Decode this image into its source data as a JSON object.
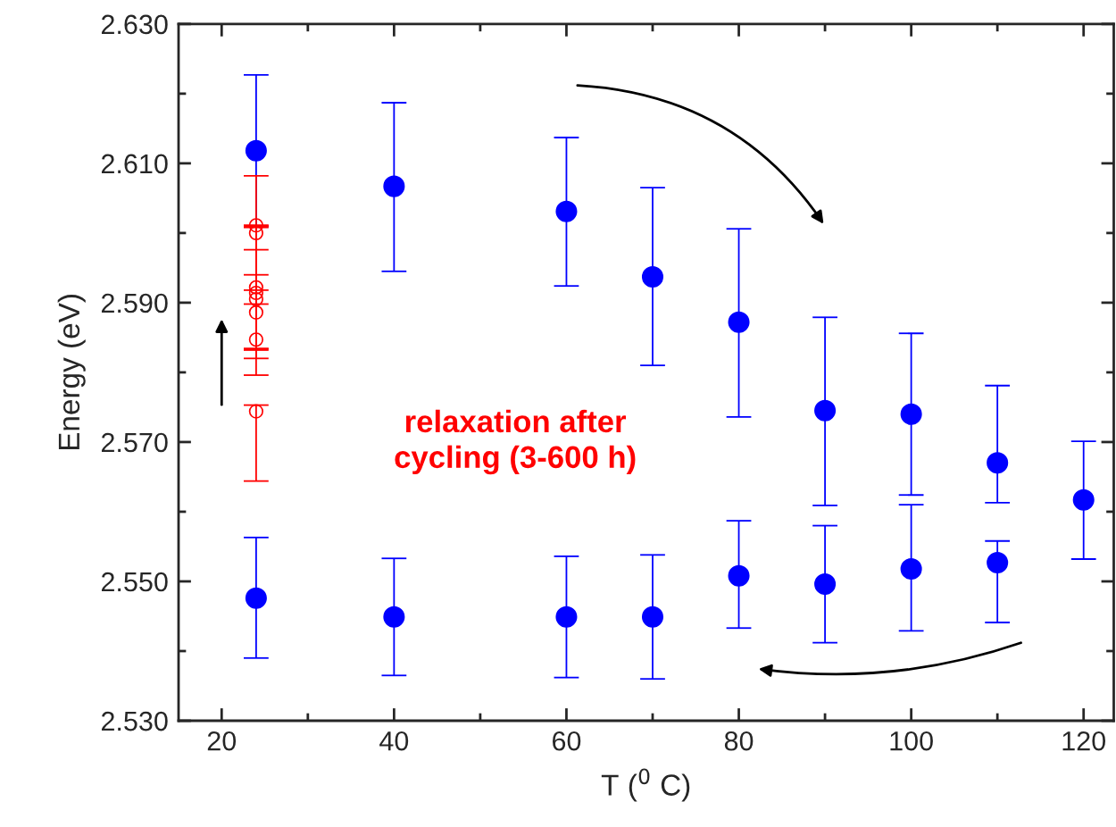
{
  "chart_data": {
    "type": "scatter",
    "xlabel": "T ($^{0}$ C)",
    "ylabel": "Energy (eV)",
    "xlim": [
      15,
      123.5
    ],
    "ylim": [
      2.53,
      2.63
    ],
    "xticks": [
      20,
      {
        "value": 30,
        "label": null
      },
      40,
      {
        "value": 50,
        "label": null
      },
      60,
      {
        "value": 70,
        "label": null
      },
      80,
      {
        "value": 90,
        "label": null
      },
      100,
      {
        "value": 110,
        "label": null
      },
      120
    ],
    "yticks": [
      {
        "value": 2.53,
        "label": "2.530"
      },
      {
        "value": 2.54,
        "label": null
      },
      {
        "value": 2.55,
        "label": "2.550"
      },
      {
        "value": 2.56,
        "label": null
      },
      {
        "value": 2.57,
        "label": "2.570"
      },
      {
        "value": 2.58,
        "label": null
      },
      {
        "value": 2.59,
        "label": "2.590"
      },
      {
        "value": 2.6,
        "label": null
      },
      {
        "value": 2.61,
        "label": "2.610"
      },
      {
        "value": 2.62,
        "label": null
      },
      {
        "value": 2.63,
        "label": "2.630"
      }
    ],
    "grid": false,
    "legend": false,
    "marker": "circle",
    "annotations": [
      "relaxation after\ncycling (3-600 h)"
    ],
    "series": [
      {
        "color": "#0000ff",
        "x": [
          24,
          40,
          60,
          70,
          80,
          90,
          100,
          110,
          120
        ],
        "values": [
          2.6118,
          2.6067,
          2.6031,
          2.5937,
          2.5872,
          2.5745,
          2.574,
          2.567,
          2.5617
        ],
        "errors": [
          [
            2.6009,
            2.6227
          ],
          [
            2.5945,
            2.6187
          ],
          [
            2.5924,
            2.6137
          ],
          [
            2.581,
            2.6065
          ],
          [
            2.5736,
            2.6006
          ],
          [
            2.5609,
            2.5879
          ],
          [
            2.5624,
            2.5856
          ],
          [
            2.5613,
            2.5781
          ],
          [
            2.5532,
            2.5701
          ]
        ]
      },
      {
        "color": "#0000ff",
        "x": [
          24,
          40,
          60,
          70,
          80,
          90,
          100,
          110
        ],
        "values": [
          2.5476,
          2.5449,
          2.5449,
          2.5449,
          2.5508,
          2.5496,
          2.5518,
          2.5527
        ],
        "errors": [
          [
            2.539,
            2.5563
          ],
          [
            2.5365,
            2.5533
          ],
          [
            2.5362,
            2.5536
          ],
          [
            2.536,
            2.5538
          ],
          [
            2.5433,
            2.5587
          ],
          [
            2.5412,
            2.558
          ],
          [
            2.5429,
            2.561
          ],
          [
            2.5441,
            2.5558
          ]
        ]
      },
      {
        "color": "#ff0000",
        "x": [
          24,
          24,
          24,
          24,
          24,
          24,
          24,
          24
        ],
        "values": [
          2.6011,
          2.6,
          2.5922,
          2.5914,
          2.5905,
          2.5886,
          2.5847,
          2.5744
        ],
        "errors": [
          null,
          [
            2.5918,
            2.6082
          ],
          [
            2.5834,
            2.601
          ],
          [
            2.582,
            2.6008
          ],
          [
            2.5834,
            2.5976
          ],
          [
            2.5832,
            2.594
          ],
          [
            2.5796,
            2.5898
          ],
          [
            2.5644,
            2.5753
          ]
        ]
      }
    ]
  }
}
